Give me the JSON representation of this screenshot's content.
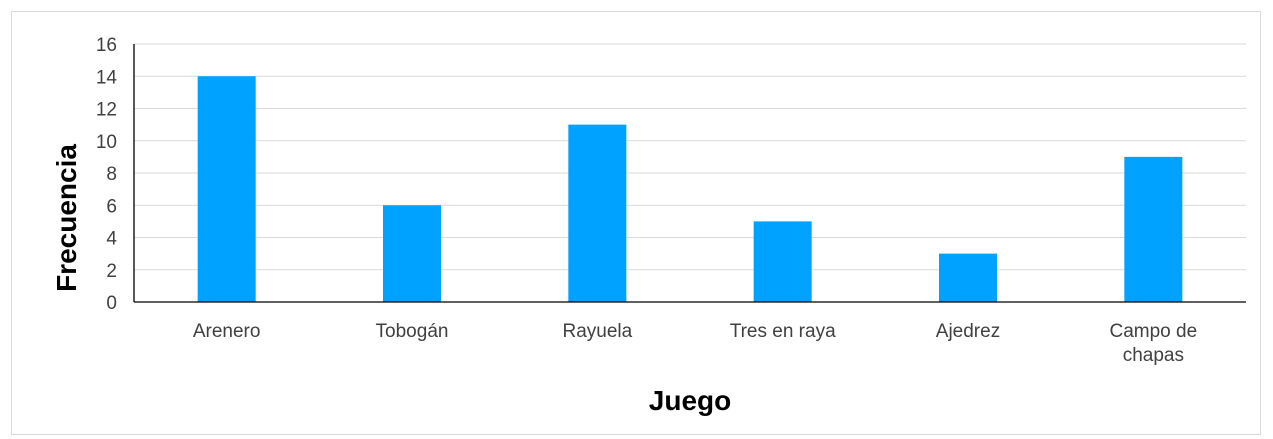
{
  "chart_data": {
    "type": "bar",
    "title": "",
    "xlabel": "Juego",
    "ylabel": "Frecuencia",
    "categories": [
      "Arenero",
      "Tobogán",
      "Rayuela",
      "Tres en raya",
      "Ajedrez",
      "Campo de chapas"
    ],
    "category_lines": [
      [
        "Arenero"
      ],
      [
        "Tobogán"
      ],
      [
        "Rayuela"
      ],
      [
        "Tres en raya"
      ],
      [
        "Ajedrez"
      ],
      [
        "Campo de",
        "chapas"
      ]
    ],
    "values": [
      14,
      6,
      11,
      5,
      3,
      9
    ],
    "ylim": [
      0,
      16
    ],
    "yticks": [
      "0",
      "2",
      "4",
      "6",
      "8",
      "10",
      "12",
      "14",
      "16"
    ],
    "grid": true,
    "legend": "none",
    "colors": {
      "bar": "#00a2ff",
      "grid": "#d9d9d9",
      "axis": "#000000"
    }
  }
}
